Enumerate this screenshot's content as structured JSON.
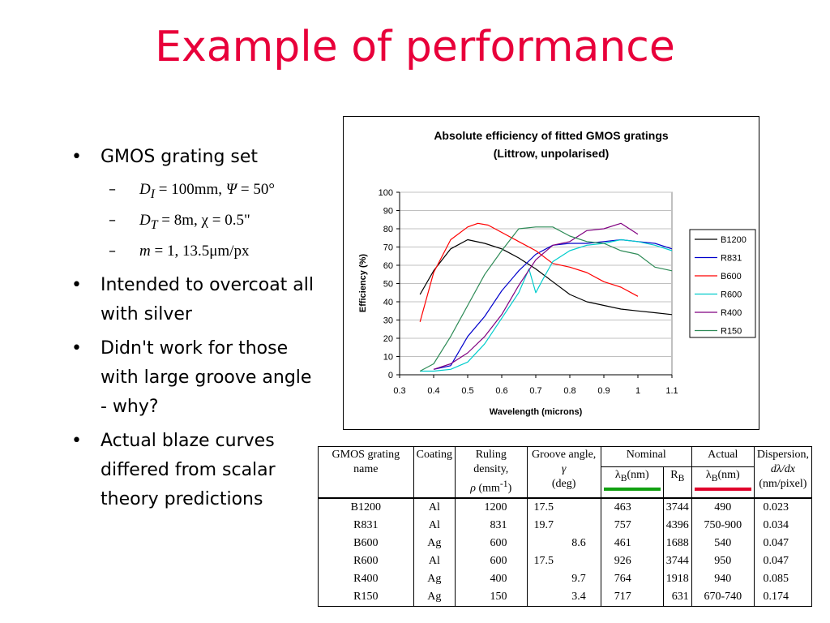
{
  "title": "Example of performance",
  "bullets": [
    {
      "text": "GMOS grating set"
    },
    {
      "text": "Intended to overcoat all with silver"
    },
    {
      "text": "Didn't work for those with large groove angle - why?"
    },
    {
      "text": "Actual blaze curves differed from scalar theory predictions"
    }
  ],
  "sub_bullets": {
    "s1_a": "D",
    "s1_sub": "I",
    "s1_b": " = 100mm,  ",
    "s1_psi": "Ψ",
    "s1_c": " = 50°",
    "s2_a": "D",
    "s2_sub": "T",
    "s2_b": "  =  8m,  χ = 0.5\"",
    "s3_a": "m",
    "s3_b": " = 1, 13.5μm/px"
  },
  "chart_data": {
    "type": "line",
    "title": "Absolute efficiency of fitted GMOS gratings",
    "subtitle": "(Littrow, unpolarised)",
    "xlabel": "Wavelength (microns)",
    "ylabel": "Efficiency (%)",
    "xlim": [
      0.3,
      1.1
    ],
    "ylim": [
      0,
      100
    ],
    "xticks": [
      "0.3",
      "0.4",
      "0.5",
      "0.6",
      "0.7",
      "0.8",
      "0.9",
      "1",
      "1.1"
    ],
    "yticks": [
      "0",
      "10",
      "20",
      "30",
      "40",
      "50",
      "60",
      "70",
      "80",
      "90",
      "100"
    ],
    "grid": true,
    "legend_position": "right",
    "series": [
      {
        "name": "B1200",
        "color": "#000000",
        "x": [
          0.36,
          0.4,
          0.45,
          0.5,
          0.55,
          0.6,
          0.65,
          0.7,
          0.75,
          0.8,
          0.85,
          0.9,
          0.95,
          1.0,
          1.05,
          1.1
        ],
        "y": [
          44,
          57,
          69,
          74,
          72,
          69,
          64,
          58,
          51,
          44,
          40,
          38,
          36,
          35,
          34,
          33
        ]
      },
      {
        "name": "R831",
        "color": "#0000cc",
        "x": [
          0.4,
          0.45,
          0.5,
          0.55,
          0.6,
          0.65,
          0.7,
          0.75,
          0.8,
          0.85,
          0.9,
          0.95,
          1.0,
          1.05,
          1.1
        ],
        "y": [
          3,
          5,
          21,
          32,
          46,
          57,
          66,
          71,
          72,
          72,
          73,
          74,
          73,
          72,
          69
        ]
      },
      {
        "name": "B600",
        "color": "#ff0000",
        "x": [
          0.36,
          0.4,
          0.45,
          0.5,
          0.53,
          0.56,
          0.6,
          0.65,
          0.7,
          0.75,
          0.8,
          0.85,
          0.9,
          0.95,
          1.0
        ],
        "y": [
          29,
          56,
          74,
          81,
          83,
          82,
          78,
          73,
          68,
          61,
          59,
          56,
          51,
          48,
          43
        ]
      },
      {
        "name": "R600",
        "color": "#00cccc",
        "x": [
          0.36,
          0.4,
          0.45,
          0.5,
          0.55,
          0.6,
          0.65,
          0.68,
          0.7,
          0.72,
          0.75,
          0.8,
          0.85,
          0.9,
          0.95,
          1.0,
          1.05,
          1.1
        ],
        "y": [
          2,
          2,
          3,
          7,
          17,
          31,
          45,
          58,
          45,
          52,
          62,
          68,
          71,
          72,
          74,
          73,
          71,
          68
        ]
      },
      {
        "name": "R400",
        "color": "#800080",
        "x": [
          0.4,
          0.45,
          0.5,
          0.55,
          0.6,
          0.65,
          0.7,
          0.75,
          0.8,
          0.85,
          0.9,
          0.95,
          1.0
        ],
        "y": [
          3,
          6,
          12,
          21,
          33,
          49,
          63,
          71,
          73,
          79,
          80,
          83,
          77
        ]
      },
      {
        "name": "R150",
        "color": "#2e8b57",
        "x": [
          0.36,
          0.4,
          0.45,
          0.5,
          0.55,
          0.6,
          0.65,
          0.7,
          0.75,
          0.8,
          0.85,
          0.9,
          0.95,
          1.0,
          1.05,
          1.1
        ],
        "y": [
          2,
          6,
          21,
          38,
          55,
          68,
          80,
          81,
          81,
          76,
          73,
          72,
          68,
          66,
          59,
          57
        ]
      }
    ]
  },
  "table": {
    "headers": {
      "name": "GMOS grating name",
      "coating": "Coating",
      "ruling_a": "Ruling density,",
      "ruling_rho": "ρ",
      "ruling_b": " (mm",
      "ruling_sup": "-1",
      "ruling_c": ")",
      "groove_a": "Groove angle, ",
      "groove_gamma": "γ",
      "groove_b": "(deg)",
      "nominal": "Nominal",
      "lambda": "λ",
      "lambda_sub": "B",
      "lambda_unit": "(nm)",
      "rb": "R",
      "rb_sub": "B",
      "actual": "Actual",
      "actual_lambda": "λ",
      "actual_lambda_sub": "B",
      "actual_lambda_unit": "(nm)",
      "disp_a": "Dispersion,",
      "disp_b": "dλ/dx",
      "disp_c": "(nm/pixel)"
    },
    "rows": [
      {
        "name": "B1200",
        "coating": "Al",
        "ruling": "1200",
        "groove": "17.5",
        "lambda_b": "463",
        "r_b": "3744",
        "actual": "490",
        "dispersion": "0.023"
      },
      {
        "name": "R831",
        "coating": "Al",
        "ruling": "831",
        "groove": "19.7",
        "lambda_b": "757",
        "r_b": "4396",
        "actual": "750-900",
        "dispersion": "0.034"
      },
      {
        "name": "B600",
        "coating": "Ag",
        "ruling": "600",
        "groove": "8.6",
        "lambda_b": "461",
        "r_b": "1688",
        "actual": "540",
        "dispersion": "0.047"
      },
      {
        "name": "R600",
        "coating": "Al",
        "ruling": "600",
        "groove": "17.5",
        "lambda_b": "926",
        "r_b": "3744",
        "actual": "950",
        "dispersion": "0.047"
      },
      {
        "name": "R400",
        "coating": "Ag",
        "ruling": "400",
        "groove": "9.7",
        "lambda_b": "764",
        "r_b": "1918",
        "actual": "940",
        "dispersion": "0.085"
      },
      {
        "name": "R150",
        "coating": "Ag",
        "ruling": "150",
        "groove": "3.4",
        "lambda_b": "717",
        "r_b": "631",
        "actual": "670-740",
        "dispersion": "0.174"
      }
    ]
  }
}
